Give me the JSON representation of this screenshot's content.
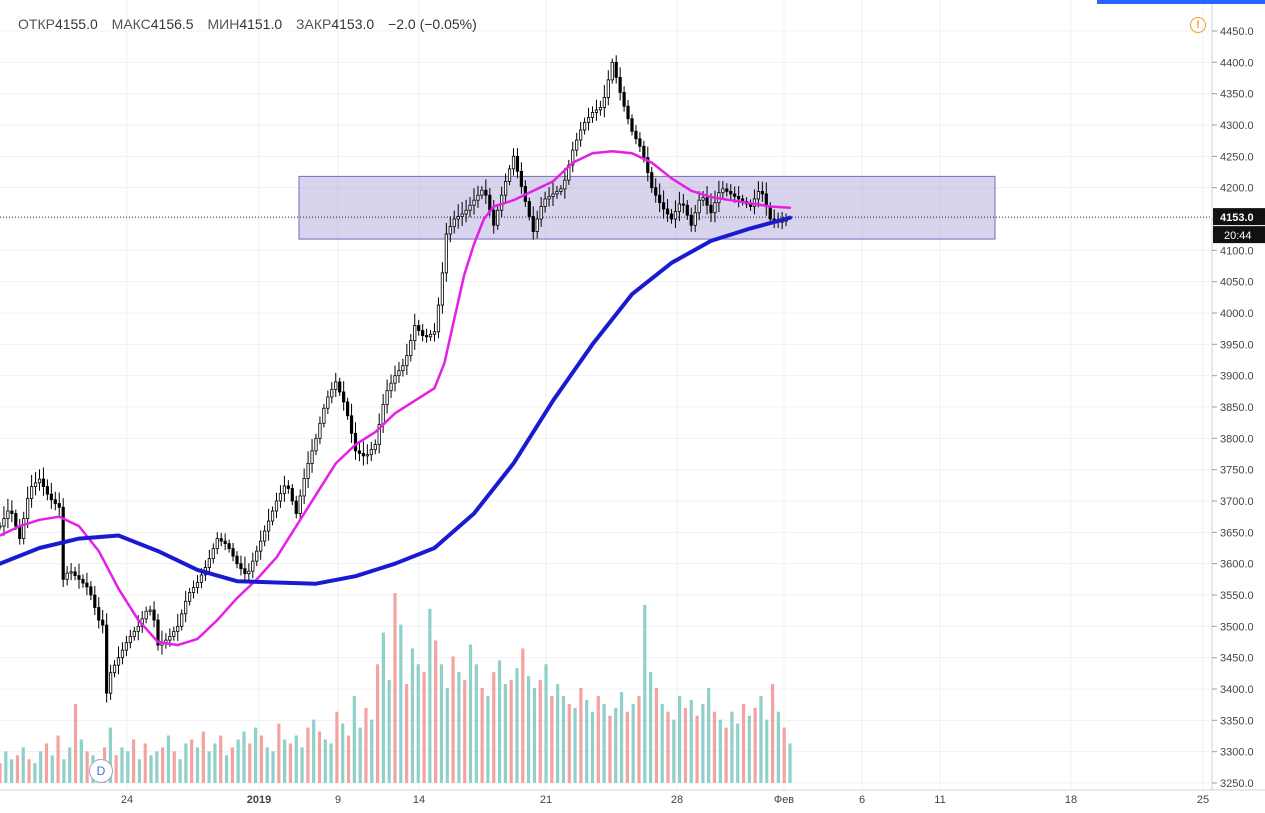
{
  "legend": {
    "open_label": "ОТКР",
    "open_value": "4155.0",
    "high_label": "МАКС",
    "high_value": "4156.5",
    "low_label": "МИН",
    "low_value": "4151.0",
    "close_label": "ЗАКР",
    "close_value": "4153.0",
    "change": "−2.0 (−0.05%)"
  },
  "price_axis": {
    "current_price_label": "4153.0",
    "countdown_label": "20:44"
  },
  "time_axis": {
    "labels": [
      "24",
      "2019",
      "9",
      "14",
      "21",
      "28",
      "Фев",
      "6",
      "11",
      "18",
      "25"
    ]
  },
  "markers": {
    "dividend_badge": "D",
    "warning_glyph": "!"
  },
  "colors": {
    "ma_fast": "#e61ee6",
    "ma_slow": "#1a1ad0",
    "candle": "#000000",
    "volume_up": "#8fd0c8",
    "volume_down": "#f3a3a0",
    "range_box": "#9c8fd0",
    "grid": "#eef0f4"
  },
  "chart_data": {
    "type": "line",
    "y_axis": {
      "min": 3250,
      "max": 4450,
      "step": 50,
      "position": "right"
    },
    "x_ticks": [
      "24",
      "2019",
      "9",
      "14",
      "21",
      "28",
      "Фев",
      "6",
      "11",
      "18",
      "25"
    ],
    "current_price": 4153.0,
    "range_box": {
      "top": 4218,
      "bottom": 4118
    },
    "price_path": [
      [
        0,
        3660
      ],
      [
        2,
        3690
      ],
      [
        4,
        3640
      ],
      [
        6,
        3720
      ],
      [
        8,
        3735
      ],
      [
        10,
        3705
      ],
      [
        12,
        3690
      ],
      [
        12.4,
        3570
      ],
      [
        14,
        3590
      ],
      [
        16,
        3575
      ],
      [
        18,
        3560
      ],
      [
        20,
        3510
      ],
      [
        21,
        3500
      ],
      [
        21.4,
        3380
      ],
      [
        22,
        3420
      ],
      [
        24,
        3450
      ],
      [
        26,
        3480
      ],
      [
        28,
        3500
      ],
      [
        30,
        3530
      ],
      [
        31,
        3520
      ],
      [
        32,
        3470
      ],
      [
        34,
        3480
      ],
      [
        36,
        3500
      ],
      [
        38,
        3550
      ],
      [
        40,
        3570
      ],
      [
        42,
        3600
      ],
      [
        44,
        3640
      ],
      [
        46,
        3630
      ],
      [
        48,
        3600
      ],
      [
        50,
        3580
      ],
      [
        52,
        3620
      ],
      [
        54,
        3660
      ],
      [
        56,
        3700
      ],
      [
        58,
        3730
      ],
      [
        60,
        3680
      ],
      [
        62,
        3750
      ],
      [
        64,
        3800
      ],
      [
        66,
        3860
      ],
      [
        68,
        3890
      ],
      [
        70,
        3850
      ],
      [
        72,
        3780
      ],
      [
        74,
        3770
      ],
      [
        76,
        3790
      ],
      [
        78,
        3870
      ],
      [
        80,
        3900
      ],
      [
        82,
        3920
      ],
      [
        84,
        3980
      ],
      [
        86,
        3960
      ],
      [
        88,
        3970
      ],
      [
        89.5,
        4050
      ],
      [
        90,
        4120
      ],
      [
        92,
        4150
      ],
      [
        94,
        4160
      ],
      [
        96,
        4180
      ],
      [
        98,
        4200
      ],
      [
        100,
        4140
      ],
      [
        102,
        4200
      ],
      [
        104,
        4250
      ],
      [
        106,
        4190
      ],
      [
        108,
        4130
      ],
      [
        110,
        4180
      ],
      [
        112,
        4190
      ],
      [
        114,
        4200
      ],
      [
        116,
        4260
      ],
      [
        118,
        4300
      ],
      [
        120,
        4320
      ],
      [
        122,
        4330
      ],
      [
        124,
        4400
      ],
      [
        126,
        4340
      ],
      [
        128,
        4290
      ],
      [
        130,
        4260
      ],
      [
        132,
        4200
      ],
      [
        134,
        4170
      ],
      [
        136,
        4150
      ],
      [
        138,
        4180
      ],
      [
        140,
        4140
      ],
      [
        142,
        4190
      ],
      [
        144,
        4160
      ],
      [
        146,
        4200
      ],
      [
        148,
        4190
      ],
      [
        150,
        4180
      ],
      [
        152,
        4170
      ],
      [
        154,
        4200
      ],
      [
        156,
        4150
      ],
      [
        158,
        4145
      ],
      [
        160,
        4153
      ]
    ],
    "series": [
      {
        "color": "#e61ee6",
        "points": [
          [
            0,
            3645
          ],
          [
            4,
            3660
          ],
          [
            8,
            3670
          ],
          [
            12,
            3675
          ],
          [
            16,
            3660
          ],
          [
            20,
            3620
          ],
          [
            24,
            3560
          ],
          [
            28,
            3510
          ],
          [
            32,
            3475
          ],
          [
            36,
            3470
          ],
          [
            40,
            3480
          ],
          [
            44,
            3510
          ],
          [
            48,
            3545
          ],
          [
            52,
            3575
          ],
          [
            56,
            3610
          ],
          [
            60,
            3660
          ],
          [
            64,
            3710
          ],
          [
            68,
            3760
          ],
          [
            72,
            3790
          ],
          [
            76,
            3810
          ],
          [
            80,
            3840
          ],
          [
            84,
            3860
          ],
          [
            88,
            3880
          ],
          [
            90,
            3920
          ],
          [
            92,
            3990
          ],
          [
            94,
            4060
          ],
          [
            96,
            4110
          ],
          [
            98,
            4150
          ],
          [
            100,
            4170
          ],
          [
            104,
            4180
          ],
          [
            108,
            4195
          ],
          [
            112,
            4210
          ],
          [
            116,
            4240
          ],
          [
            120,
            4255
          ],
          [
            124,
            4258
          ],
          [
            128,
            4255
          ],
          [
            132,
            4240
          ],
          [
            136,
            4215
          ],
          [
            140,
            4195
          ],
          [
            144,
            4185
          ],
          [
            148,
            4180
          ],
          [
            152,
            4175
          ],
          [
            156,
            4170
          ],
          [
            160,
            4168
          ]
        ]
      },
      {
        "color": "#1a1ad0",
        "points": [
          [
            0,
            3600
          ],
          [
            8,
            3625
          ],
          [
            16,
            3640
          ],
          [
            24,
            3645
          ],
          [
            32,
            3620
          ],
          [
            40,
            3590
          ],
          [
            48,
            3572
          ],
          [
            56,
            3570
          ],
          [
            64,
            3568
          ],
          [
            72,
            3580
          ],
          [
            80,
            3600
          ],
          [
            88,
            3625
          ],
          [
            96,
            3680
          ],
          [
            104,
            3760
          ],
          [
            112,
            3860
          ],
          [
            120,
            3950
          ],
          [
            128,
            4030
          ],
          [
            136,
            4080
          ],
          [
            144,
            4115
          ],
          [
            152,
            4135
          ],
          [
            160,
            4152
          ]
        ]
      }
    ],
    "volume": [
      5,
      8,
      6,
      7,
      9,
      6,
      5,
      8,
      10,
      7,
      12,
      6,
      9,
      20,
      11,
      8,
      7,
      6,
      9,
      14,
      7,
      9,
      8,
      11,
      6,
      10,
      7,
      8,
      9,
      12,
      8,
      6,
      10,
      11,
      9,
      13,
      8,
      10,
      12,
      7,
      9,
      11,
      13,
      10,
      14,
      12,
      9,
      8,
      15,
      11,
      10,
      12,
      9,
      14,
      16,
      13,
      11,
      10,
      18,
      15,
      12,
      22,
      14,
      19,
      16,
      30,
      38,
      26,
      48,
      40,
      25,
      34,
      30,
      28,
      44,
      36,
      30,
      24,
      32,
      28,
      26,
      35,
      30,
      24,
      22,
      28,
      31,
      25,
      26,
      29,
      34,
      27,
      24,
      26,
      30,
      22,
      25,
      22,
      20,
      19,
      24,
      21,
      18,
      22,
      20,
      17,
      19,
      23,
      18,
      20,
      22,
      45,
      28,
      24,
      20,
      18,
      16,
      22,
      19,
      21,
      17,
      20,
      24,
      18,
      16,
      14,
      18,
      15,
      20,
      17,
      19,
      22,
      16,
      25,
      18,
      14,
      10
    ]
  }
}
